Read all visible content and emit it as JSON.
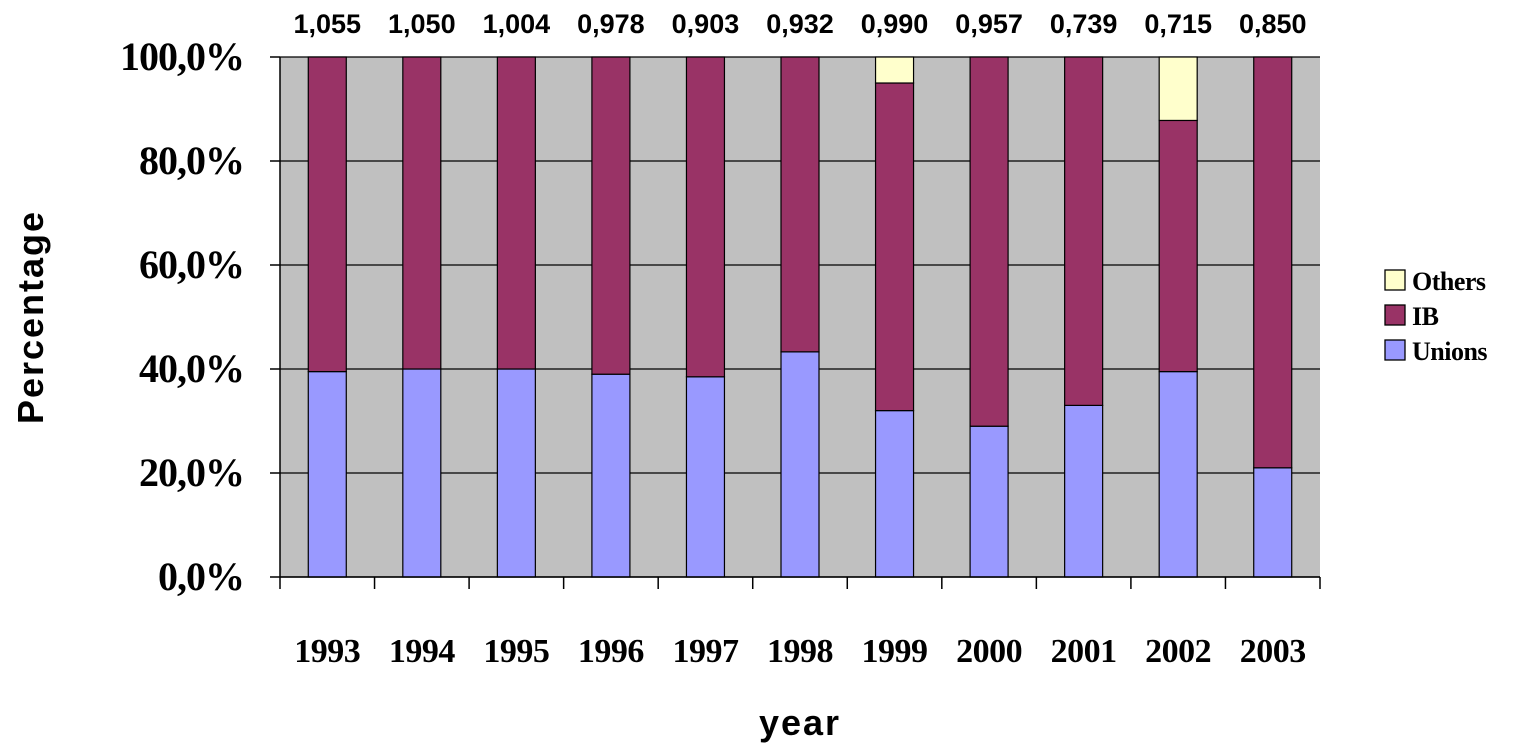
{
  "chart_data": {
    "type": "bar",
    "stacked": true,
    "categories": [
      "1993",
      "1994",
      "1995",
      "1996",
      "1997",
      "1998",
      "1999",
      "2000",
      "2001",
      "2002",
      "2003"
    ],
    "top_labels": [
      "1,055",
      "1,050",
      "1,004",
      "0,978",
      "0,903",
      "0,932",
      "0,990",
      "0,957",
      "0,739",
      "0,715",
      "0,850"
    ],
    "series": [
      {
        "name": "Unions",
        "color": "#9999ff",
        "values": [
          39.5,
          40.0,
          40.0,
          39.0,
          38.5,
          43.3,
          32.0,
          29.0,
          33.0,
          39.5,
          21.0
        ]
      },
      {
        "name": "IB",
        "color": "#993366",
        "values": [
          60.5,
          60.0,
          60.0,
          61.0,
          61.5,
          56.7,
          63.0,
          71.0,
          67.0,
          48.3,
          79.0
        ]
      },
      {
        "name": "Others",
        "color": "#ffffcc",
        "values": [
          0.0,
          0.0,
          0.0,
          0.0,
          0.0,
          0.0,
          5.0,
          0.0,
          0.0,
          12.2,
          0.0
        ]
      }
    ],
    "ytick_labels": [
      "0,0%",
      "20,0%",
      "40,0%",
      "60,0%",
      "80,0%",
      "100,0%"
    ],
    "ylim": [
      0,
      100
    ],
    "ylabel": "Percentage",
    "xlabel": "year",
    "grid": true,
    "legend_position": "right",
    "plot_background": "#c0c0c0"
  }
}
